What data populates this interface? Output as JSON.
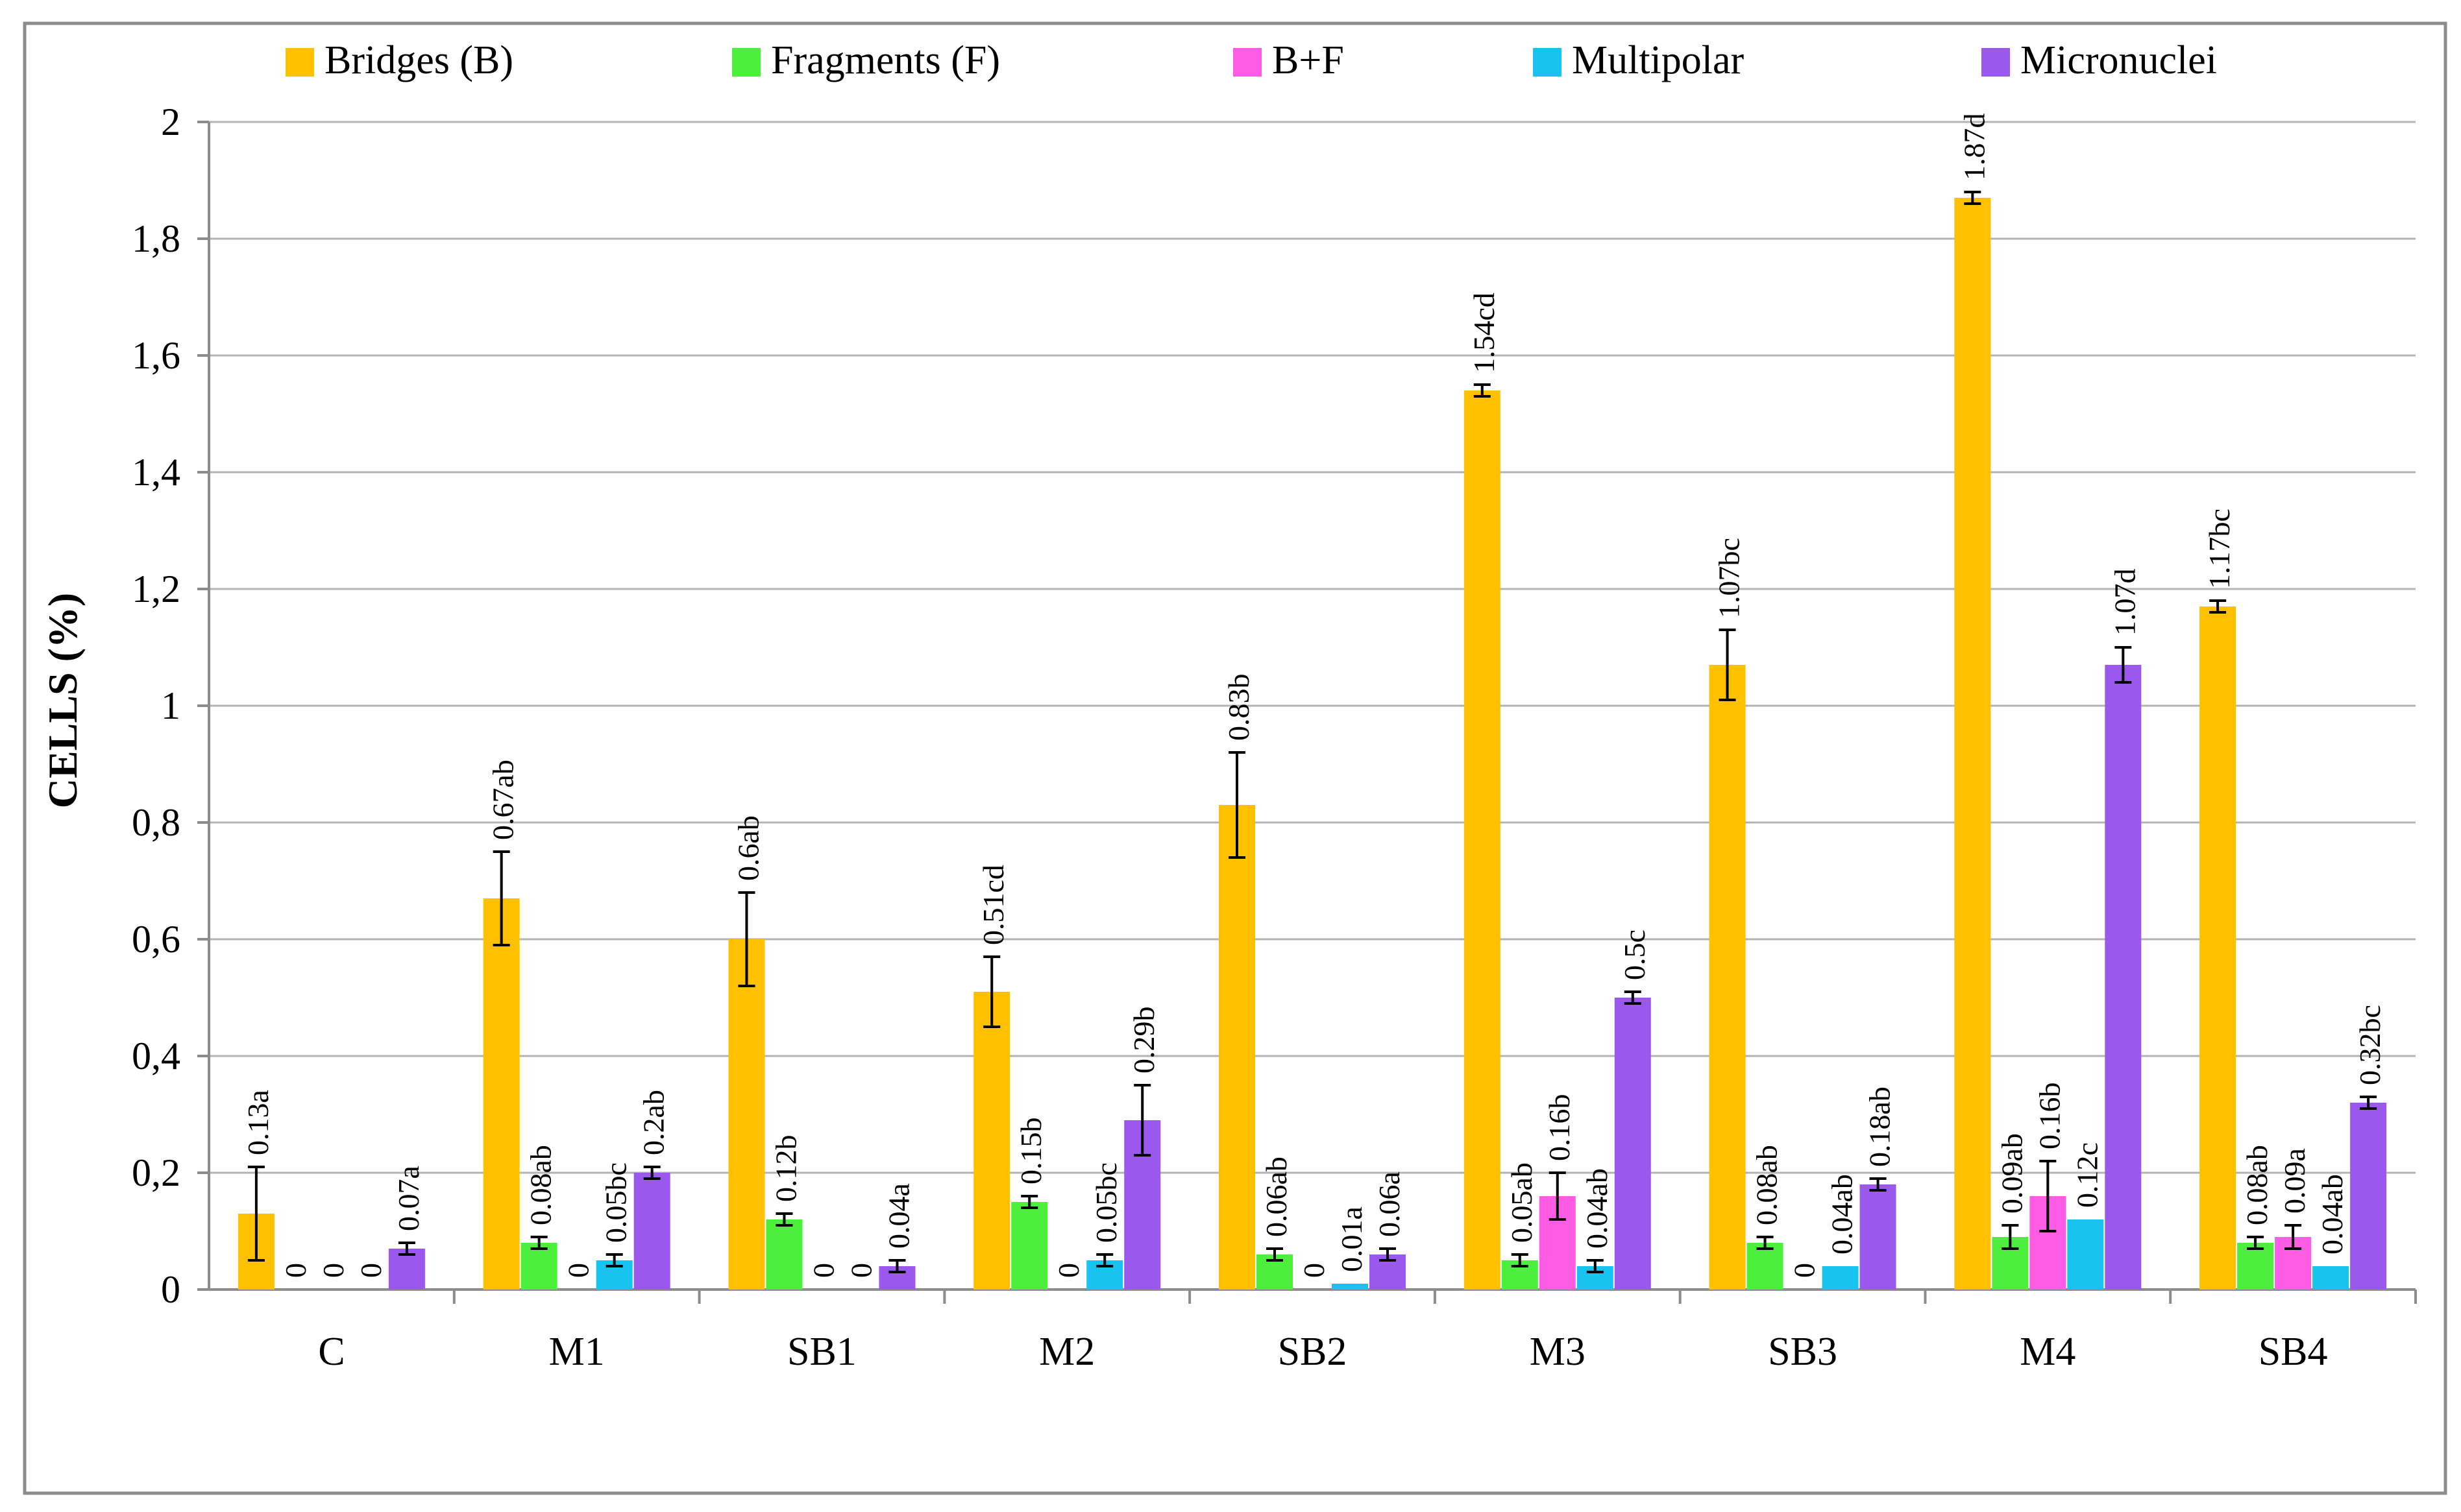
{
  "colors": {
    "Bridges (B)": "#FFC000",
    "Fragments (F)": "#4CF03C",
    "B+F": "#FF5CE6",
    "Multipolar": "#19C3F0",
    "Micronuclei": "#9B58EC",
    "grid": "#b3b3b3",
    "axis": "#8c8c8c",
    "frame": "#8c8c8c",
    "errorbar": "#000000"
  },
  "chart_data": {
    "type": "bar",
    "title": "",
    "xlabel": "",
    "ylabel": "CELLS (%)",
    "ylim": [
      0,
      2
    ],
    "y_ticks": [
      0,
      0.2,
      0.4,
      0.6,
      0.8,
      1,
      1.2,
      1.4,
      1.6,
      1.8,
      2
    ],
    "y_tick_labels": [
      "0",
      "0,2",
      "0,4",
      "0,6",
      "0,8",
      "1",
      "1,2",
      "1,4",
      "1,6",
      "1,8",
      "2"
    ],
    "grid": true,
    "legend": "top",
    "categories": [
      "C",
      "M1",
      "SB1",
      "M2",
      "SB2",
      "M3",
      "SB3",
      "M4",
      "SB4"
    ],
    "series": [
      {
        "name": "Bridges (B)",
        "values": [
          0.13,
          0.67,
          0.6,
          0.51,
          0.83,
          1.54,
          1.07,
          1.87,
          1.17
        ],
        "errors": [
          0.08,
          0.08,
          0.08,
          0.06,
          0.09,
          0.01,
          0.06,
          0.01,
          0.01
        ],
        "labels": [
          "0.13a",
          "0.67ab",
          "0.6ab",
          "0.51cd",
          "0.83b",
          "1.54cd",
          "1.07bc",
          "1.87d",
          "1.17bc"
        ]
      },
      {
        "name": "Fragments (F)",
        "values": [
          0,
          0.08,
          0.12,
          0.15,
          0.06,
          0.05,
          0.08,
          0.09,
          0.08
        ],
        "errors": [
          0,
          0.01,
          0.01,
          0.01,
          0.01,
          0.01,
          0.01,
          0.02,
          0.01
        ],
        "labels": [
          "0",
          "0.08ab",
          "0.12b",
          "0.15b",
          "0.06ab",
          "0.05ab",
          "0.08ab",
          "0.09ab",
          "0.08ab"
        ]
      },
      {
        "name": "B+F",
        "values": [
          0,
          0,
          0,
          0,
          0,
          0.16,
          0,
          0.16,
          0.09
        ],
        "errors": [
          0,
          0,
          0,
          0,
          0,
          0.04,
          0,
          0.06,
          0.02
        ],
        "labels": [
          "0",
          "0",
          "0",
          "0",
          "0",
          "0.16b",
          "0",
          "0.16b",
          "0.09a"
        ]
      },
      {
        "name": "Multipolar",
        "values": [
          0,
          0.05,
          0,
          0.05,
          0.01,
          0.04,
          0.04,
          0.12,
          0.04
        ],
        "errors": [
          0,
          0.01,
          0,
          0.01,
          0,
          0.01,
          0,
          0,
          0
        ],
        "labels": [
          "0",
          "0.05bc",
          "0",
          "0.05bc",
          "0.01a",
          "0.04ab",
          "0.04ab",
          "0.12c",
          "0.04ab"
        ]
      },
      {
        "name": "Micronuclei",
        "values": [
          0.07,
          0.2,
          0.04,
          0.29,
          0.06,
          0.5,
          0.18,
          1.07,
          0.32
        ],
        "errors": [
          0.01,
          0.01,
          0.01,
          0.06,
          0.01,
          0.01,
          0.01,
          0.03,
          0.01
        ],
        "labels": [
          "0.07a",
          "0.2ab",
          "0.04a",
          "0.29b",
          "0.06a",
          "0.5c",
          "0.18ab",
          "1.07d",
          "0.32bc"
        ]
      }
    ]
  }
}
